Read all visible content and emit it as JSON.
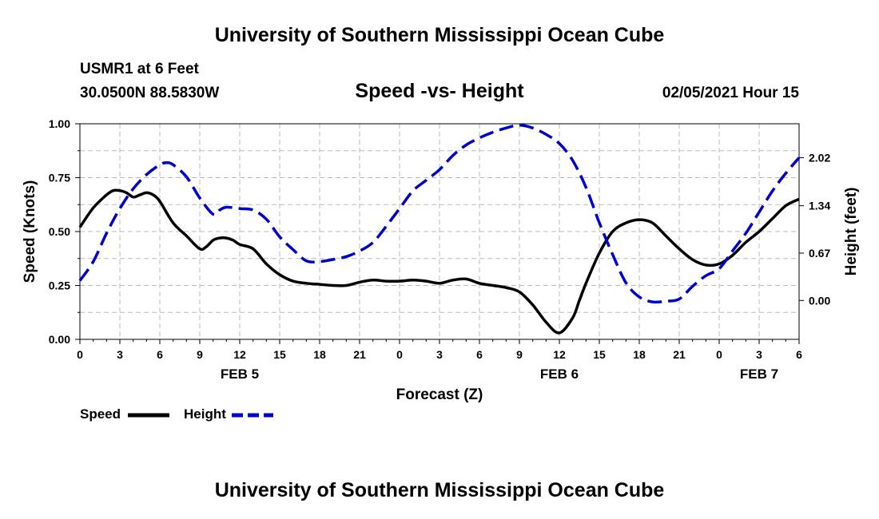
{
  "header": {
    "title": "University of Southern Mississippi Ocean Cube",
    "station": "USMR1 at 6 Feet",
    "coords": "30.0500N 88.5830W",
    "timestamp": "02/05/2021 Hour 15"
  },
  "footer": {
    "title": "University of Southern Mississippi Ocean Cube"
  },
  "colors": {
    "speed": "#000000",
    "height": "#0000cc",
    "grid": "#bbbbbb"
  },
  "chart_data": {
    "type": "line",
    "title": "Speed -vs- Height",
    "xlabel": "Forecast (Z)",
    "ylabel_left": "Speed (Knots)",
    "ylabel_right": "Height (feet)",
    "xlim": [
      0,
      54
    ],
    "ylim_left": [
      0,
      1
    ],
    "ylim_right": [
      -0.55,
      2.5
    ],
    "grid": true,
    "x_ticks": [
      0,
      3,
      6,
      9,
      12,
      15,
      18,
      21,
      24,
      27,
      30,
      33,
      36,
      39,
      42,
      45,
      48,
      51,
      54
    ],
    "x_tick_labels": [
      "0",
      "3",
      "6",
      "9",
      "12",
      "15",
      "18",
      "21",
      "0",
      "3",
      "6",
      "9",
      "12",
      "15",
      "18",
      "21",
      "0",
      "3",
      "6"
    ],
    "left_ticks": [
      0,
      0.25,
      0.5,
      0.75,
      1.0
    ],
    "left_tick_labels": [
      "0.00",
      "0.25",
      "0.50",
      "0.75",
      "1.00"
    ],
    "right_ticks": [
      0,
      0.67,
      1.34,
      2.02
    ],
    "right_tick_labels": [
      "0.00",
      "0.67",
      "1.34",
      "2.02"
    ],
    "day_labels": [
      {
        "label": "FEB 5",
        "x": 12
      },
      {
        "label": "FEB 6",
        "x": 36
      },
      {
        "label": "FEB 7",
        "x": 51
      }
    ],
    "series": [
      {
        "name": "Speed",
        "axis": "left",
        "style": "solid",
        "x": [
          0,
          1,
          2,
          2.5,
          3,
          3.5,
          4,
          4.5,
          5,
          5.5,
          6,
          7,
          8,
          9,
          9.5,
          10,
          10.5,
          11,
          11.5,
          12,
          13,
          14,
          15,
          16,
          17,
          18,
          19,
          20,
          21,
          22,
          23,
          24,
          25,
          26,
          27,
          28,
          29,
          30,
          31,
          32,
          33,
          34,
          35,
          36,
          37,
          37.5,
          38,
          39,
          40,
          41,
          42,
          43,
          44,
          45,
          46,
          47,
          48,
          49,
          50,
          51,
          52,
          53,
          54
        ],
        "values": [
          0.52,
          0.61,
          0.67,
          0.69,
          0.69,
          0.68,
          0.66,
          0.67,
          0.68,
          0.67,
          0.64,
          0.54,
          0.48,
          0.42,
          0.43,
          0.46,
          0.47,
          0.47,
          0.46,
          0.44,
          0.42,
          0.35,
          0.3,
          0.27,
          0.26,
          0.255,
          0.25,
          0.25,
          0.265,
          0.275,
          0.27,
          0.27,
          0.275,
          0.27,
          0.26,
          0.275,
          0.28,
          0.26,
          0.25,
          0.24,
          0.22,
          0.16,
          0.08,
          0.03,
          0.1,
          0.18,
          0.26,
          0.4,
          0.5,
          0.54,
          0.555,
          0.54,
          0.48,
          0.42,
          0.37,
          0.345,
          0.35,
          0.39,
          0.45,
          0.5,
          0.56,
          0.62,
          0.65
        ]
      },
      {
        "name": "Height",
        "axis": "right",
        "style": "dashed",
        "x": [
          0,
          1,
          2,
          3,
          4,
          5,
          6,
          6.5,
          7,
          8,
          9,
          10,
          10.5,
          11,
          12,
          13,
          14,
          15,
          16,
          17,
          18,
          19,
          20,
          21,
          22,
          23,
          24,
          25,
          26,
          27,
          28,
          29,
          30,
          31,
          32,
          33,
          34,
          35,
          36,
          37,
          38,
          39,
          40,
          41,
          42,
          43,
          44,
          45,
          46,
          47,
          48,
          49,
          50,
          51,
          52,
          53,
          54
        ],
        "values": [
          0.28,
          0.55,
          0.95,
          1.3,
          1.58,
          1.78,
          1.92,
          1.95,
          1.92,
          1.75,
          1.45,
          1.22,
          1.28,
          1.32,
          1.3,
          1.28,
          1.15,
          0.9,
          0.72,
          0.56,
          0.55,
          0.58,
          0.62,
          0.7,
          0.82,
          1.05,
          1.3,
          1.55,
          1.7,
          1.85,
          2.05,
          2.2,
          2.3,
          2.38,
          2.44,
          2.48,
          2.44,
          2.35,
          2.22,
          1.98,
          1.6,
          1.1,
          0.65,
          0.25,
          0.05,
          -0.02,
          -0.01,
          0.02,
          0.2,
          0.35,
          0.45,
          0.7,
          0.95,
          1.25,
          1.55,
          1.8,
          2.02
        ]
      }
    ]
  }
}
